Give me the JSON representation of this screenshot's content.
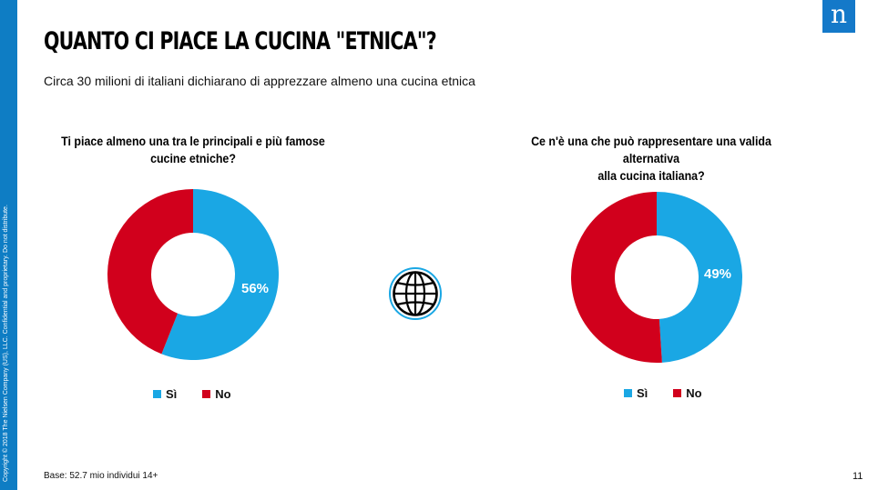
{
  "header": {
    "title": "QUANTO CI PIACE LA CUCINA \"ETNICA\"?",
    "subtitle": "Circa 30 milioni di italiani dichiarano di apprezzare almeno una cucina etnica"
  },
  "sidebar": {
    "copyright": "Copyright © 2018 The Nielsen Company (US), LLC. Confidential and proprietary. Do not distribute."
  },
  "logo": {
    "letter": "n"
  },
  "colors": {
    "si": "#1aa7e4",
    "no": "#d1001c",
    "accent": "#0e7dc4"
  },
  "chart_data": [
    {
      "type": "pie",
      "title": "Ti piace almeno una tra le principali e più famose cucine etniche?",
      "title_lines": [
        "Ti piace almeno una tra le principali e più famose",
        "cucine etniche?"
      ],
      "donut": true,
      "categories": [
        "Sì",
        "No"
      ],
      "values": [
        56,
        44
      ],
      "data_labels": [
        "56%"
      ],
      "legend_position": "bottom"
    },
    {
      "type": "pie",
      "title": "Ce n'è una che può rappresentare una valida alternativa alla cucina italiana?",
      "title_lines": [
        "Ce n'è una che può rappresentare una valida alternativa",
        "alla cucina italiana?"
      ],
      "donut": true,
      "categories": [
        "Sì",
        "No"
      ],
      "values": [
        49,
        51
      ],
      "data_labels": [
        "49%"
      ],
      "legend_position": "bottom"
    }
  ],
  "footer": {
    "base": "Base: 52.7 mio individui 14+",
    "page_number": "11"
  },
  "icons": {
    "center": "globe-icon"
  }
}
